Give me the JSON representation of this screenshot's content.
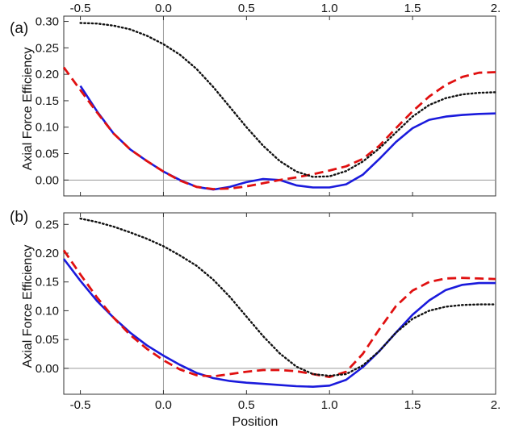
{
  "figure": {
    "top_axis_ticks": [
      "-0.5",
      "0.0",
      "0.5",
      "1.0",
      "1.5",
      "2."
    ],
    "xlabel": "Position"
  },
  "chart_data": [
    {
      "type": "line",
      "panel_label": "(a)",
      "xlabel": "",
      "ylabel": "Axial Force Efficiency",
      "xlim": [
        -0.6,
        2.0
      ],
      "ylim": [
        -0.03,
        0.31
      ],
      "x_ticks": [
        "-0.5",
        "0.0",
        "0.5",
        "1.0",
        "1.5",
        "2."
      ],
      "y_ticks": [
        "0.00",
        "0.05",
        "0.10",
        "0.15",
        "0.20",
        "0.25",
        "0.30"
      ],
      "series": [
        {
          "name": "blue solid",
          "color": "#1a1adc",
          "style": "solid",
          "x": [
            -0.5,
            -0.4,
            -0.3,
            -0.2,
            -0.1,
            0.0,
            0.1,
            0.2,
            0.3,
            0.4,
            0.5,
            0.6,
            0.7,
            0.8,
            0.9,
            1.0,
            1.1,
            1.2,
            1.3,
            1.4,
            1.5,
            1.6,
            1.7,
            1.8,
            1.9,
            2.0
          ],
          "y": [
            0.178,
            0.13,
            0.088,
            0.058,
            0.036,
            0.016,
            0.0,
            -0.013,
            -0.018,
            -0.013,
            -0.004,
            0.002,
            0.0,
            -0.01,
            -0.014,
            -0.014,
            -0.008,
            0.01,
            0.04,
            0.072,
            0.098,
            0.114,
            0.12,
            0.123,
            0.125,
            0.126
          ]
        },
        {
          "name": "red dashed",
          "color": "#e01010",
          "style": "dashed",
          "x": [
            -0.6,
            -0.5,
            -0.4,
            -0.3,
            -0.2,
            -0.1,
            0.0,
            0.1,
            0.2,
            0.3,
            0.4,
            0.5,
            0.6,
            0.7,
            0.8,
            0.9,
            1.0,
            1.1,
            1.2,
            1.3,
            1.4,
            1.5,
            1.6,
            1.7,
            1.8,
            1.9,
            2.0
          ],
          "y": [
            0.213,
            0.17,
            0.128,
            0.088,
            0.058,
            0.036,
            0.016,
            -0.001,
            -0.013,
            -0.017,
            -0.016,
            -0.012,
            -0.006,
            0.0,
            0.005,
            0.011,
            0.018,
            0.026,
            0.04,
            0.065,
            0.098,
            0.13,
            0.158,
            0.18,
            0.195,
            0.203,
            0.204
          ]
        },
        {
          "name": "black dotted",
          "color": "#111111",
          "style": "dotted",
          "x": [
            -0.5,
            -0.4,
            -0.3,
            -0.2,
            -0.1,
            0.0,
            0.1,
            0.2,
            0.3,
            0.4,
            0.5,
            0.6,
            0.7,
            0.8,
            0.9,
            1.0,
            1.1,
            1.2,
            1.3,
            1.4,
            1.5,
            1.6,
            1.7,
            1.8,
            1.9,
            2.0
          ],
          "y": [
            0.297,
            0.296,
            0.292,
            0.285,
            0.273,
            0.257,
            0.237,
            0.21,
            0.176,
            0.138,
            0.1,
            0.065,
            0.036,
            0.016,
            0.006,
            0.007,
            0.017,
            0.035,
            0.06,
            0.09,
            0.12,
            0.142,
            0.155,
            0.162,
            0.165,
            0.166
          ]
        }
      ]
    },
    {
      "type": "line",
      "panel_label": "(b)",
      "xlabel": "Position",
      "ylabel": "Axial Force Efficiency",
      "xlim": [
        -0.6,
        2.0
      ],
      "ylim": [
        -0.045,
        0.27
      ],
      "x_ticks": [
        "-0.5",
        "0.0",
        "0.5",
        "1.0",
        "1.5",
        "2."
      ],
      "y_ticks": [
        "0.00",
        "0.05",
        "0.10",
        "0.15",
        "0.20",
        "0.25"
      ],
      "series": [
        {
          "name": "blue solid",
          "color": "#1a1adc",
          "style": "solid",
          "x": [
            -0.6,
            -0.5,
            -0.4,
            -0.3,
            -0.2,
            -0.1,
            0.0,
            0.1,
            0.2,
            0.3,
            0.4,
            0.5,
            0.6,
            0.7,
            0.8,
            0.9,
            1.0,
            1.1,
            1.2,
            1.3,
            1.4,
            1.5,
            1.6,
            1.7,
            1.8,
            1.9,
            2.0
          ],
          "y": [
            0.19,
            0.152,
            0.117,
            0.088,
            0.062,
            0.04,
            0.022,
            0.006,
            -0.008,
            -0.017,
            -0.022,
            -0.025,
            -0.027,
            -0.029,
            -0.031,
            -0.032,
            -0.03,
            -0.02,
            0.002,
            0.03,
            0.062,
            0.093,
            0.118,
            0.136,
            0.145,
            0.148,
            0.148
          ]
        },
        {
          "name": "red dashed",
          "color": "#e01010",
          "style": "dashed",
          "x": [
            -0.6,
            -0.5,
            -0.4,
            -0.3,
            -0.2,
            -0.1,
            0.0,
            0.1,
            0.2,
            0.3,
            0.4,
            0.5,
            0.6,
            0.7,
            0.8,
            0.9,
            1.0,
            1.1,
            1.2,
            1.3,
            1.4,
            1.5,
            1.6,
            1.7,
            1.8,
            1.9,
            2.0
          ],
          "y": [
            0.205,
            0.163,
            0.123,
            0.088,
            0.058,
            0.034,
            0.014,
            -0.002,
            -0.012,
            -0.014,
            -0.01,
            -0.006,
            -0.003,
            -0.003,
            -0.005,
            -0.01,
            -0.015,
            -0.006,
            0.025,
            0.068,
            0.108,
            0.135,
            0.15,
            0.156,
            0.157,
            0.156,
            0.155
          ]
        },
        {
          "name": "black dotted",
          "color": "#111111",
          "style": "dotted",
          "x": [
            -0.5,
            -0.4,
            -0.3,
            -0.2,
            -0.1,
            0.0,
            0.1,
            0.2,
            0.3,
            0.4,
            0.5,
            0.6,
            0.7,
            0.8,
            0.9,
            1.0,
            1.1,
            1.2,
            1.3,
            1.4,
            1.5,
            1.6,
            1.7,
            1.8,
            1.9,
            2.0
          ],
          "y": [
            0.26,
            0.254,
            0.246,
            0.236,
            0.225,
            0.212,
            0.196,
            0.178,
            0.154,
            0.124,
            0.09,
            0.056,
            0.026,
            0.003,
            -0.01,
            -0.013,
            -0.01,
            0.005,
            0.03,
            0.062,
            0.086,
            0.1,
            0.107,
            0.11,
            0.111,
            0.111
          ]
        }
      ]
    }
  ]
}
